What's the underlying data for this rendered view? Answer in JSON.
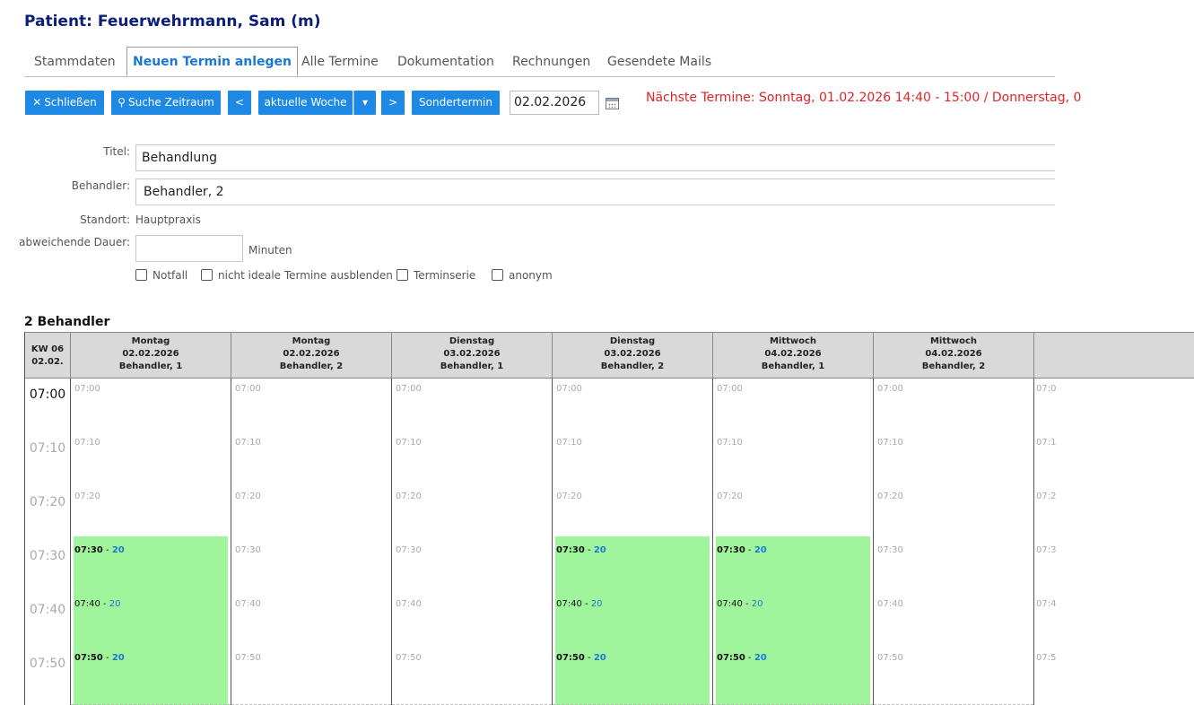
{
  "patient_title": "Patient: Feuerwehrmann, Sam (m)",
  "tabs": [
    {
      "label": "Stammdaten",
      "active": false
    },
    {
      "label": "Neuen Termin anlegen",
      "active": true
    },
    {
      "label": "Alle Termine",
      "active": false
    },
    {
      "label": "Dokumentation",
      "active": false
    },
    {
      "label": "Rechnungen",
      "active": false
    },
    {
      "label": "Gesendete Mails",
      "active": false
    }
  ],
  "toolbar": {
    "close_label": "Schließen",
    "search_label": "Suche Zeitraum",
    "prev_label": "<",
    "week_label": "aktuelle Woche",
    "next_label": ">",
    "special_label": "Sondertermin",
    "date_value": "02.02.2026"
  },
  "next_appointments": "Nächste Termine: Sonntag, 01.02.2026 14:40 - 15:00 / Donnerstag, 0",
  "form": {
    "titel_label": "Titel:",
    "titel_value": "Behandlung",
    "behandler_label": "Behandler:",
    "behandler_value": "Behandler, 2",
    "standort_label": "Standort:",
    "standort_value": "Hauptpraxis",
    "dauer_label": "abweichende Dauer:",
    "dauer_value": "",
    "minuten_label": "Minuten",
    "checkboxes": [
      "Notfall",
      "nicht ideale Termine ausblenden",
      "Terminserie",
      "anonym"
    ]
  },
  "calendar": {
    "section_title": "2 Behandler",
    "kw_label": "KW 06",
    "kw_date": "02.02.",
    "columns": [
      {
        "day": "Montag",
        "date": "02.02.2026",
        "behandler": "Behandler, 1",
        "free": true
      },
      {
        "day": "Montag",
        "date": "02.02.2026",
        "behandler": "Behandler, 2",
        "free": false
      },
      {
        "day": "Dienstag",
        "date": "03.02.2026",
        "behandler": "Behandler, 1",
        "free": false
      },
      {
        "day": "Dienstag",
        "date": "03.02.2026",
        "behandler": "Behandler, 2",
        "free": true
      },
      {
        "day": "Mittwoch",
        "date": "04.02.2026",
        "behandler": "Behandler, 1",
        "free": true
      },
      {
        "day": "Mittwoch",
        "date": "04.02.2026",
        "behandler": "Behandler, 2",
        "free": false
      }
    ],
    "times": [
      "07:00",
      "07:10",
      "07:20",
      "07:30",
      "07:40",
      "07:50"
    ],
    "partial_times": [
      "07:0",
      "07:1",
      "07:2",
      "07:3",
      "07:4",
      "07:5"
    ],
    "free_from_index": 3,
    "free_duration": "20",
    "colors": {
      "free_slot": "#a0f59c",
      "button": "#1e88e5",
      "active_tab": "#1a78d4",
      "next_appointments": "#e02424",
      "title": "#0b1f7a"
    }
  }
}
